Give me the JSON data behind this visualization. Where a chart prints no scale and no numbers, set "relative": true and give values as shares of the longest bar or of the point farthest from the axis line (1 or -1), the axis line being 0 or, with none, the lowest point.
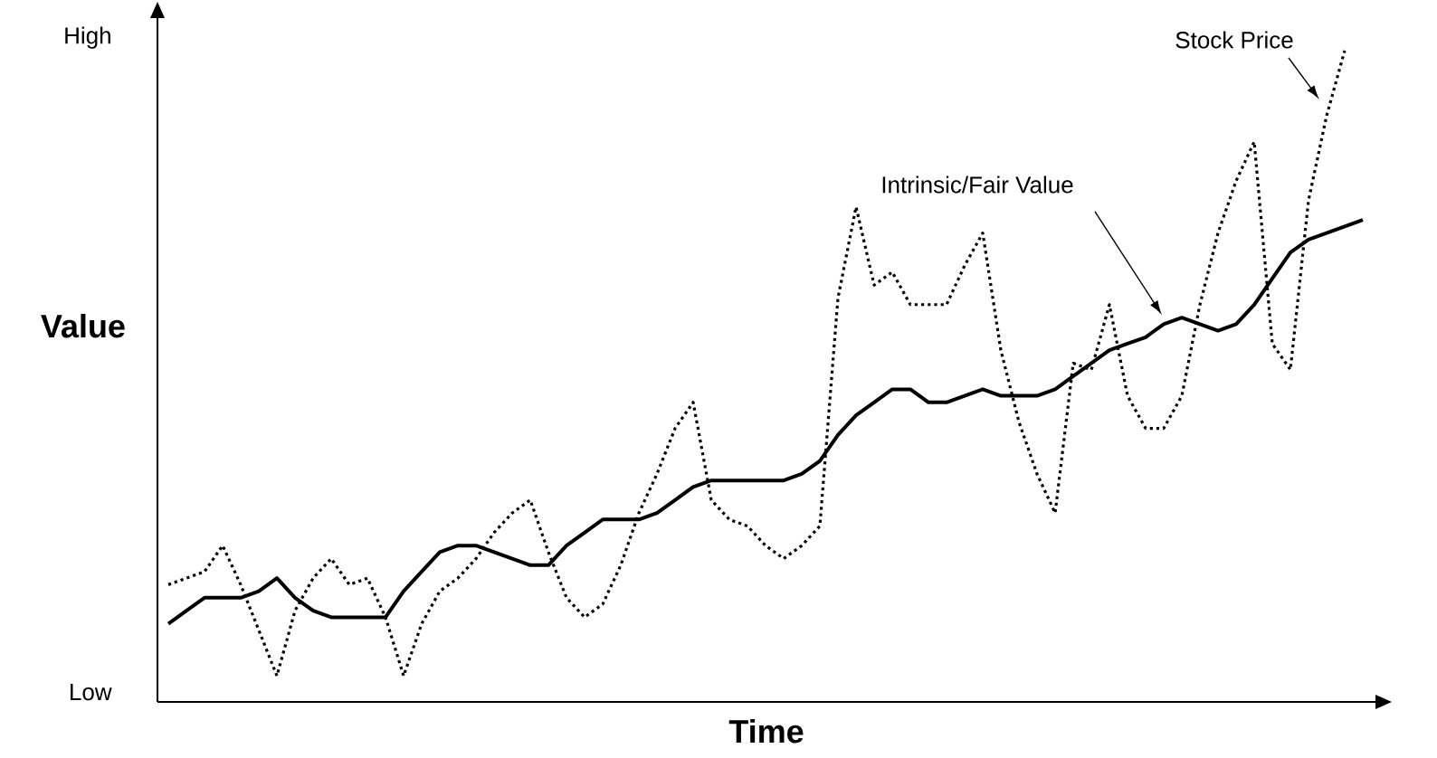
{
  "chart_data": {
    "type": "line",
    "relative": true,
    "xlabel": "Time",
    "ylabel": "Value",
    "annotations": [
      "High",
      "Low"
    ],
    "legend": false,
    "categories": [
      null,
      null,
      null,
      null,
      null,
      null,
      null,
      null,
      null,
      null,
      null,
      null,
      null,
      null,
      null,
      null,
      null,
      null,
      null,
      null,
      null,
      null,
      null,
      null,
      null,
      null,
      null,
      null,
      null,
      null,
      null,
      null,
      null,
      null,
      null,
      null,
      null,
      null,
      null,
      null,
      null,
      null,
      null,
      null,
      null,
      null,
      null,
      null,
      null,
      null,
      null,
      null,
      null,
      null,
      null,
      null,
      null,
      null,
      null,
      null,
      null,
      null,
      null,
      null,
      null,
      null,
      null
    ],
    "series": [
      {
        "name": "Stock Price",
        "color": "#000000",
        "line_style": "dotted",
        "values": [
          0.18,
          0.19,
          0.2,
          0.24,
          0.18,
          0.11,
          0.04,
          0.14,
          0.19,
          0.22,
          0.18,
          0.19,
          0.13,
          0.04,
          0.12,
          0.17,
          0.19,
          0.22,
          0.26,
          0.29,
          0.31,
          0.23,
          0.16,
          0.13,
          0.15,
          0.21,
          0.29,
          0.35,
          0.42,
          0.46,
          0.31,
          0.28,
          0.27,
          0.24,
          0.22,
          0.24,
          0.27,
          0.62,
          0.76,
          0.64,
          0.66,
          0.61,
          0.61,
          0.61,
          0.67,
          0.72,
          0.54,
          0.43,
          0.35,
          0.29,
          0.52,
          0.51,
          0.61,
          0.47,
          0.42,
          0.42,
          0.47,
          0.61,
          0.72,
          0.8,
          0.86,
          0.55,
          0.51,
          0.77,
          0.9,
          1,
          null
        ]
      },
      {
        "name": "Intrinsic/Fair Value",
        "color": "#000000",
        "line_style": "solid",
        "values": [
          0.12,
          0.14,
          0.16,
          0.16,
          0.16,
          0.17,
          0.19,
          0.16,
          0.14,
          0.13,
          0.13,
          0.13,
          0.13,
          0.17,
          0.2,
          0.23,
          0.24,
          0.24,
          0.23,
          0.22,
          0.21,
          0.21,
          0.24,
          0.26,
          0.28,
          0.28,
          0.28,
          0.29,
          0.31,
          0.33,
          0.34,
          0.34,
          0.34,
          0.34,
          0.34,
          0.35,
          0.37,
          0.41,
          0.44,
          0.46,
          0.48,
          0.48,
          0.46,
          0.46,
          0.47,
          0.48,
          0.47,
          0.47,
          0.47,
          0.48,
          0.5,
          0.52,
          0.54,
          0.55,
          0.56,
          0.58,
          0.59,
          0.58,
          0.57,
          0.58,
          0.61,
          0.65,
          0.69,
          0.71,
          0.72,
          0.73,
          0.74
        ]
      }
    ]
  }
}
